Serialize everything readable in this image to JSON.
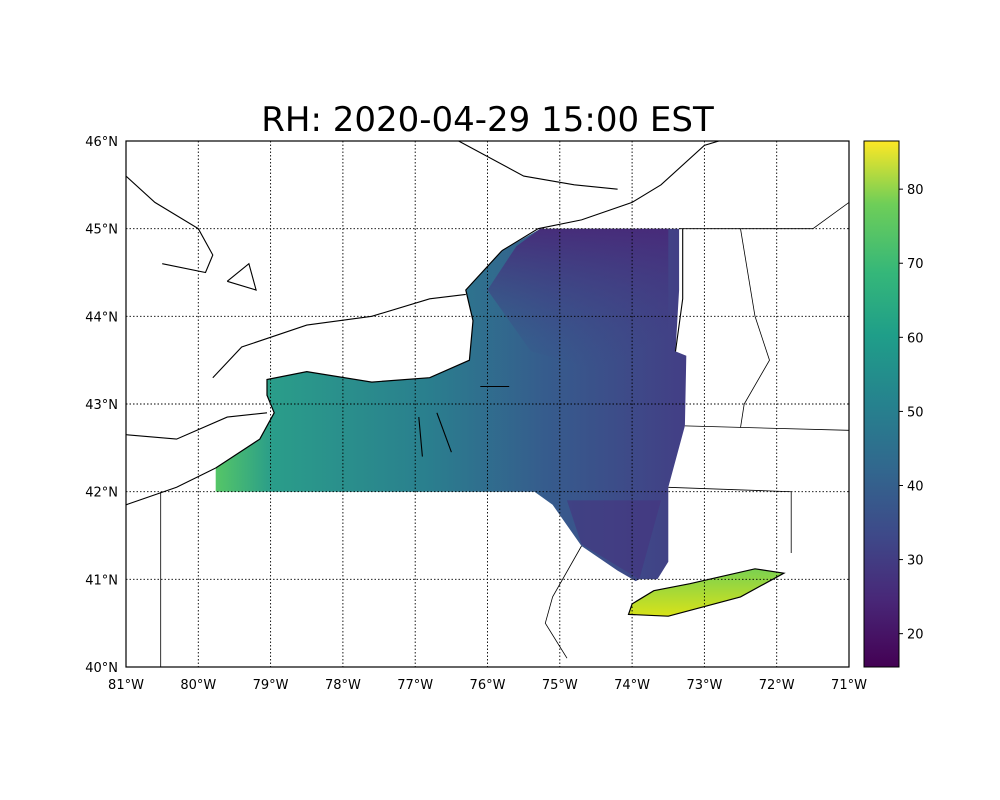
{
  "title": "RH: 2020-04-29 15:00 EST",
  "chart_data": {
    "type": "heatmap",
    "title": "RH: 2020-04-29 15:00 EST",
    "variable": "RH",
    "region": "New York State",
    "colormap": "viridis",
    "colorbar": {
      "ticks": [
        "20",
        "30",
        "40",
        "50",
        "60",
        "70",
        "80"
      ],
      "range": [
        15.5,
        86.5
      ]
    },
    "lon_ticks": [
      "81°W",
      "80°W",
      "79°W",
      "78°W",
      "77°W",
      "76°W",
      "75°W",
      "74°W",
      "73°W",
      "72°W",
      "71°W"
    ],
    "lat_ticks": [
      "40°N",
      "41°N",
      "42°N",
      "43°N",
      "44°N",
      "45°N",
      "46°N"
    ],
    "lon_range": [
      -81,
      -71
    ],
    "lat_range": [
      40,
      46
    ],
    "grid": true,
    "approx_values": {
      "western_ny": 55,
      "central_ny": 45,
      "adirondacks": 28,
      "hudson_valley": 35,
      "long_island": 75
    }
  }
}
